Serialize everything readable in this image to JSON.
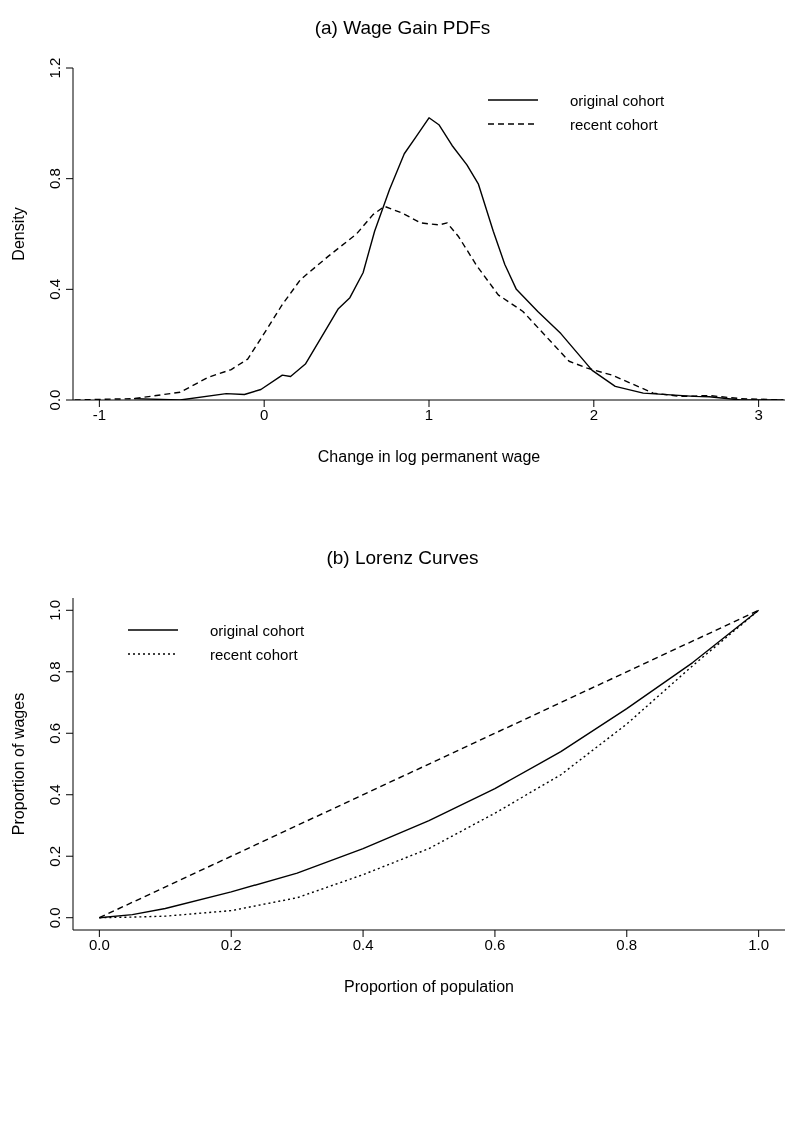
{
  "chart_data": [
    {
      "type": "line",
      "title": "(a) Wage Gain PDFs",
      "xlabel": "Change in log permanent wage",
      "ylabel": "Density",
      "xlim": [
        -1.16,
        3.16
      ],
      "xticks": [
        -1,
        0,
        1,
        2,
        3
      ],
      "ylim": [
        0,
        1.2
      ],
      "yticks": [
        {
          "value": 0,
          "label": "0.0"
        },
        {
          "value": 0.4,
          "label": "0.4"
        },
        {
          "value": 0.8,
          "label": "0.8"
        },
        {
          "value": 1.2,
          "label": "1.2"
        }
      ],
      "grid": false,
      "legend": "top right",
      "series": [
        {
          "name": "original cohort",
          "color": "#000000",
          "line_style": "solid",
          "x": [
            -0.79,
            -0.51,
            -0.23,
            -0.12,
            -0.02,
            0.11,
            0.16,
            0.25,
            0.38,
            0.45,
            0.52,
            0.6,
            0.67,
            0.76,
            0.85,
            0.92,
            1.0,
            1.06,
            1.14,
            1.23,
            1.3,
            1.39,
            1.46,
            1.53,
            1.66,
            1.8,
            1.99,
            2.13,
            2.3,
            2.61,
            2.7,
            2.89,
            3.15
          ],
          "values": [
            0.005,
            0,
            0.023,
            0.02,
            0.038,
            0.09,
            0.085,
            0.13,
            0.26,
            0.33,
            0.37,
            0.46,
            0.61,
            0.76,
            0.89,
            0.95,
            1.02,
            0.995,
            0.92,
            0.85,
            0.78,
            0.61,
            0.49,
            0.4,
            0.32,
            0.24,
            0.107,
            0.049,
            0.025,
            0.013,
            0.012,
            0,
            0
          ]
        },
        {
          "name": "recent cohort",
          "color": "#000000",
          "line_style": "dashed",
          "x": [
            -1.15,
            -0.79,
            -0.51,
            -0.34,
            -0.2,
            -0.1,
            0.01,
            0.11,
            0.22,
            0.39,
            0.56,
            0.66,
            0.73,
            0.84,
            0.95,
            1.06,
            1.11,
            1.18,
            1.29,
            1.42,
            1.57,
            1.71,
            1.85,
            1.96,
            2.11,
            2.36,
            2.53,
            2.7,
            2.89,
            3.15
          ],
          "values": [
            0,
            0.005,
            0.028,
            0.082,
            0.11,
            0.148,
            0.25,
            0.345,
            0.435,
            0.52,
            0.6,
            0.67,
            0.7,
            0.675,
            0.64,
            0.633,
            0.64,
            0.59,
            0.485,
            0.38,
            0.32,
            0.23,
            0.14,
            0.115,
            0.09,
            0.025,
            0.013,
            0.016,
            0.005,
            0
          ]
        }
      ]
    },
    {
      "type": "line",
      "title": "(b) Lorenz Curves",
      "xlabel": "Proportion of population",
      "ylabel": "Proportion of wages",
      "xlim": [
        -0.04,
        1.04
      ],
      "xticks": [
        {
          "value": 0,
          "label": "0.0"
        },
        {
          "value": 0.2,
          "label": "0.2"
        },
        {
          "value": 0.4,
          "label": "0.4"
        },
        {
          "value": 0.6,
          "label": "0.6"
        },
        {
          "value": 0.8,
          "label": "0.8"
        },
        {
          "value": 1,
          "label": "1.0"
        }
      ],
      "ylim": [
        -0.04,
        1.04
      ],
      "yticks": [
        {
          "value": 0,
          "label": "0.0"
        },
        {
          "value": 0.2,
          "label": "0.2"
        },
        {
          "value": 0.4,
          "label": "0.4"
        },
        {
          "value": 0.6,
          "label": "0.6"
        },
        {
          "value": 0.8,
          "label": "0.8"
        },
        {
          "value": 1,
          "label": "1.0"
        }
      ],
      "grid": false,
      "legend": "top left",
      "series": [
        {
          "name": "original cohort",
          "color": "#000000",
          "line_style": "solid",
          "x": [
            0,
            0.05,
            0.1,
            0.2,
            0.3,
            0.4,
            0.5,
            0.6,
            0.7,
            0.8,
            0.9,
            1
          ],
          "values": [
            0,
            0.01,
            0.03,
            0.084,
            0.145,
            0.225,
            0.316,
            0.42,
            0.54,
            0.68,
            0.83,
            1
          ]
        },
        {
          "name": "recent cohort",
          "color": "#000000",
          "line_style": "dotted",
          "x": [
            0,
            0.05,
            0.1,
            0.2,
            0.3,
            0.4,
            0.5,
            0.6,
            0.7,
            0.8,
            0.9,
            1
          ],
          "values": [
            0,
            0.002,
            0.005,
            0.023,
            0.065,
            0.14,
            0.225,
            0.34,
            0.465,
            0.63,
            0.82,
            1
          ]
        },
        {
          "color": "#000000",
          "line_style": "dashed",
          "x": [
            0,
            1
          ],
          "values": [
            0,
            1
          ]
        }
      ]
    }
  ]
}
